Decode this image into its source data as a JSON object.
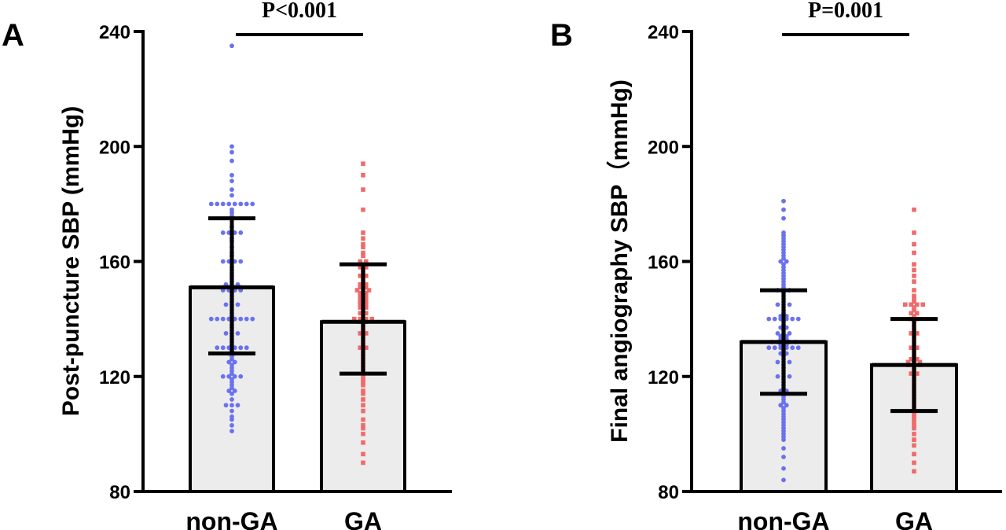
{
  "chart_data": [
    {
      "panel": "A",
      "type": "bar",
      "ylabel": "Post-puncture SBP (mmHg)",
      "ylim": [
        80,
        240
      ],
      "yticks": [
        80,
        120,
        160,
        200,
        240
      ],
      "categories": [
        "non-GA",
        "GA"
      ],
      "values": [
        151,
        139
      ],
      "error_upper": [
        175,
        159
      ],
      "error_lower": [
        128,
        121
      ],
      "significance": "P<0.001",
      "point_colors": [
        "#6b72ee",
        "#f06b6b"
      ],
      "points": [
        [
          235,
          200,
          198,
          195,
          190,
          188,
          185,
          183,
          180,
          180,
          180,
          180,
          180,
          180,
          180,
          180,
          178,
          177,
          176,
          175,
          172,
          170,
          170,
          170,
          170,
          168,
          167,
          165,
          163,
          162,
          160,
          160,
          160,
          160,
          158,
          157,
          156,
          155,
          154,
          153,
          152,
          152,
          152,
          151,
          151,
          151,
          151,
          150,
          150,
          150,
          150,
          149,
          148,
          147,
          146,
          145,
          145,
          145,
          144,
          143,
          142,
          141,
          140,
          140,
          140,
          140,
          140,
          140,
          140,
          140,
          139,
          138,
          137,
          136,
          135,
          135,
          135,
          134,
          133,
          132,
          131,
          130,
          130,
          130,
          130,
          130,
          130,
          129,
          128,
          128,
          127,
          126,
          125,
          125,
          124,
          123,
          122,
          121,
          120,
          120,
          120,
          120,
          119,
          118,
          117,
          116,
          115,
          115,
          114,
          112,
          110,
          110,
          110,
          108,
          106,
          105,
          103,
          101
        ],
        [
          194,
          190,
          185,
          178,
          170,
          168,
          166,
          165,
          163,
          162,
          160,
          160,
          159,
          158,
          158,
          157,
          156,
          155,
          155,
          154,
          153,
          152,
          152,
          151,
          151,
          150,
          150,
          150,
          149,
          149,
          148,
          148,
          147,
          147,
          146,
          146,
          145,
          145,
          144,
          144,
          143,
          142,
          142,
          141,
          140,
          140,
          140,
          140,
          139,
          139,
          138,
          137,
          136,
          135,
          135,
          134,
          133,
          132,
          131,
          130,
          130,
          129,
          128,
          127,
          126,
          125,
          124,
          123,
          122,
          121,
          120,
          119,
          118,
          117,
          115,
          114,
          112,
          110,
          108,
          105,
          103,
          102,
          100,
          97,
          93,
          90
        ]
      ]
    },
    {
      "panel": "B",
      "type": "bar",
      "ylabel": "Final angiography SBP（mmHg)",
      "ylim": [
        80,
        240
      ],
      "yticks": [
        80,
        120,
        160,
        200,
        240
      ],
      "categories": [
        "non-GA",
        "GA"
      ],
      "values": [
        132,
        124
      ],
      "error_upper": [
        150,
        140
      ],
      "error_lower": [
        114,
        108
      ],
      "significance": "P=0.001",
      "point_colors": [
        "#6b72ee",
        "#f06b6b"
      ],
      "points": [
        [
          181,
          178,
          175,
          170,
          169,
          168,
          167,
          166,
          165,
          164,
          163,
          162,
          161,
          160,
          160,
          159,
          158,
          157,
          156,
          155,
          154,
          153,
          152,
          151,
          150,
          150,
          150,
          149,
          148,
          147,
          146,
          145,
          145,
          145,
          144,
          143,
          142,
          141,
          141,
          140,
          140,
          140,
          140,
          140,
          140,
          139,
          138,
          137,
          137,
          136,
          135,
          135,
          135,
          134,
          134,
          133,
          133,
          132,
          132,
          132,
          132,
          132,
          131,
          131,
          130,
          130,
          130,
          130,
          130,
          130,
          129,
          128,
          128,
          127,
          126,
          125,
          125,
          125,
          124,
          123,
          122,
          121,
          120,
          120,
          120,
          119,
          118,
          117,
          116,
          115,
          115,
          114,
          113,
          112,
          111,
          110,
          110,
          109,
          108,
          107,
          106,
          105,
          104,
          103,
          102,
          101,
          100,
          99,
          98,
          95,
          92,
          88,
          84
        ],
        [
          178,
          170,
          166,
          163,
          159,
          157,
          155,
          153,
          150,
          148,
          147,
          146,
          145,
          145,
          145,
          145,
          144,
          143,
          142,
          142,
          141,
          140,
          140,
          139,
          138,
          137,
          136,
          135,
          135,
          134,
          133,
          132,
          131,
          130,
          130,
          129,
          128,
          127,
          126,
          126,
          125,
          125,
          125,
          124,
          124,
          124,
          123,
          122,
          121,
          121,
          120,
          119,
          118,
          117,
          116,
          115,
          114,
          113,
          112,
          111,
          110,
          109,
          108,
          107,
          106,
          105,
          104,
          103,
          102,
          100,
          98,
          96,
          93,
          90,
          87
        ]
      ]
    }
  ]
}
